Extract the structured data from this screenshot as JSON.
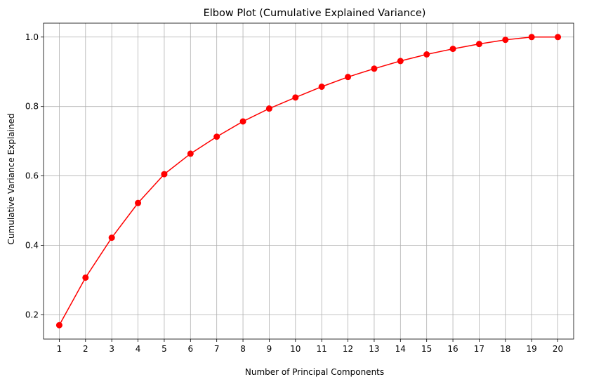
{
  "chart_data": {
    "type": "line",
    "title": "Elbow Plot (Cumulative Explained Variance)",
    "xlabel": "Number of Principal Components",
    "ylabel": "Cumulative Variance Explained",
    "x": [
      1,
      2,
      3,
      4,
      5,
      6,
      7,
      8,
      9,
      10,
      11,
      12,
      13,
      14,
      15,
      16,
      17,
      18,
      19,
      20
    ],
    "xticks": [
      "1",
      "2",
      "3",
      "4",
      "5",
      "6",
      "7",
      "8",
      "9",
      "10",
      "11",
      "12",
      "13",
      "14",
      "15",
      "16",
      "17",
      "18",
      "19",
      "20"
    ],
    "xlim": [
      0.4,
      20.6
    ],
    "ylim": [
      0.13,
      1.04
    ],
    "yticks": [
      0.2,
      0.4,
      0.6,
      0.8,
      1.0
    ],
    "ytick_labels": [
      "0.2",
      "0.4",
      "0.6",
      "0.8",
      "1.0"
    ],
    "grid": true,
    "series": [
      {
        "color": "#ff0000",
        "marker": "circle",
        "values": [
          0.17,
          0.307,
          0.422,
          0.522,
          0.605,
          0.664,
          0.713,
          0.757,
          0.794,
          0.826,
          0.857,
          0.885,
          0.909,
          0.931,
          0.95,
          0.966,
          0.98,
          0.992,
          1.0,
          1.0
        ]
      }
    ]
  }
}
